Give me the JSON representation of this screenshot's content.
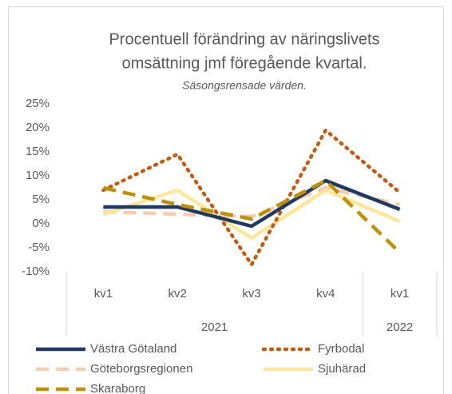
{
  "chart_data": {
    "type": "line",
    "title": [
      "Procentuell förändring av näringslivets",
      "omsättning jmf föregående kvartal."
    ],
    "subtitle": "Säsongsrensade värden.",
    "categories": [
      "kv1",
      "kv2",
      "kv3",
      "kv4",
      "kv1"
    ],
    "groups": [
      {
        "name": "2021",
        "span": 4
      },
      {
        "name": "2022",
        "span": 1
      }
    ],
    "ylim": [
      -10,
      25
    ],
    "yticks": [
      {
        "value": -10,
        "label": "-10%"
      },
      {
        "value": -5,
        "label": "-5%"
      },
      {
        "value": 0,
        "label": "0%"
      },
      {
        "value": 5,
        "label": "5%"
      },
      {
        "value": 10,
        "label": "10%"
      },
      {
        "value": 15,
        "label": "15%"
      },
      {
        "value": 20,
        "label": "20%"
      },
      {
        "value": 25,
        "label": "25%"
      }
    ],
    "grid": false,
    "legend": "bottom",
    "series": [
      {
        "name": "Västra Götaland",
        "color": "#1f3864",
        "dash": "solid",
        "values": [
          3.5,
          3.5,
          -0.5,
          9,
          3
        ]
      },
      {
        "name": "Fyrbodal",
        "color": "#c55a11",
        "dash": "dotted",
        "values": [
          7,
          14.5,
          -8.5,
          19.5,
          6.5
        ]
      },
      {
        "name": "Göteborgsregionen",
        "color": "#f8cbad",
        "dash": "dashed",
        "values": [
          2.5,
          2,
          1.5,
          7.5,
          4
        ]
      },
      {
        "name": "Sjuhärad",
        "color": "#ffe699",
        "dash": "solid",
        "values": [
          2,
          7,
          -3,
          7,
          0.5
        ]
      },
      {
        "name": "Skaraborg",
        "color": "#bf9000",
        "dash": "dashed",
        "values": [
          7.5,
          4,
          1,
          9,
          -6
        ]
      }
    ]
  }
}
